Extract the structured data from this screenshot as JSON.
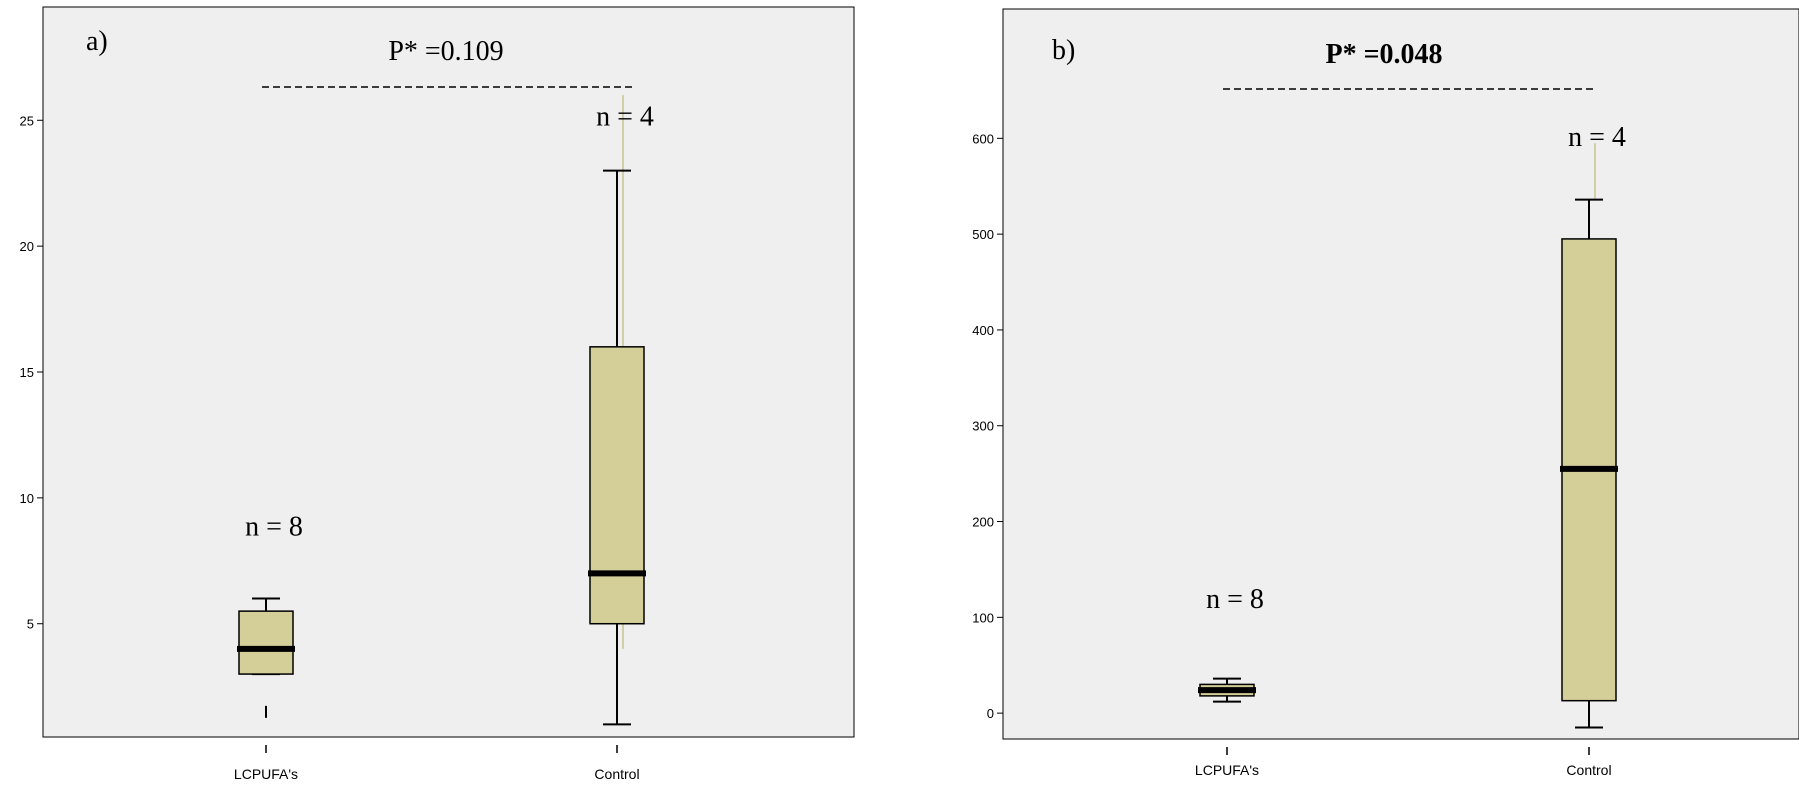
{
  "colors": {
    "plot_bg": "#efefef",
    "box_fill": "#d4cf99",
    "line": "#000000",
    "faint_whisker": "#c8c390"
  },
  "chart_data": [
    {
      "type": "box",
      "panel_label": "a)",
      "p_label": "P* =0.109",
      "p_bold": false,
      "ylim": [
        0.5,
        29.5
      ],
      "yticks": [
        5,
        10,
        15,
        20,
        25
      ],
      "categories": [
        "LCPUFA's",
        "Control"
      ],
      "boxes": [
        {
          "category": "LCPUFA's",
          "whisker_low": 3,
          "q1": 3,
          "median": 4,
          "q3": 5.5,
          "whisker_high": 6,
          "outliers": [
            1.5
          ],
          "n_label": "n = 8",
          "n_at": 8.5
        },
        {
          "category": "Control",
          "whisker_low": 1,
          "q1": 5,
          "median": 7,
          "q3": 16,
          "whisker_high": 23,
          "outliers": [],
          "faint_range": [
            4,
            26
          ],
          "n_label": "n = 4",
          "n_at": 24.8
        }
      ]
    },
    {
      "type": "box",
      "panel_label": "b)",
      "p_label": "P* =0.048",
      "p_bold": true,
      "ylim": [
        -27,
        735
      ],
      "yticks": [
        0,
        100,
        200,
        300,
        400,
        500,
        600
      ],
      "categories": [
        "LCPUFA's",
        "Control"
      ],
      "boxes": [
        {
          "category": "LCPUFA's",
          "whisker_low": 12,
          "q1": 18,
          "median": 24,
          "q3": 30,
          "whisker_high": 36,
          "outliers": [],
          "n_label": "n = 8",
          "n_at": 110
        },
        {
          "category": "Control",
          "whisker_low": -15,
          "q1": 13,
          "median": 255,
          "q3": 495,
          "whisker_high": 536,
          "outliers": [],
          "faint_range": [
            536,
            595
          ],
          "n_label": "n = 4",
          "n_at": 592
        }
      ]
    }
  ]
}
